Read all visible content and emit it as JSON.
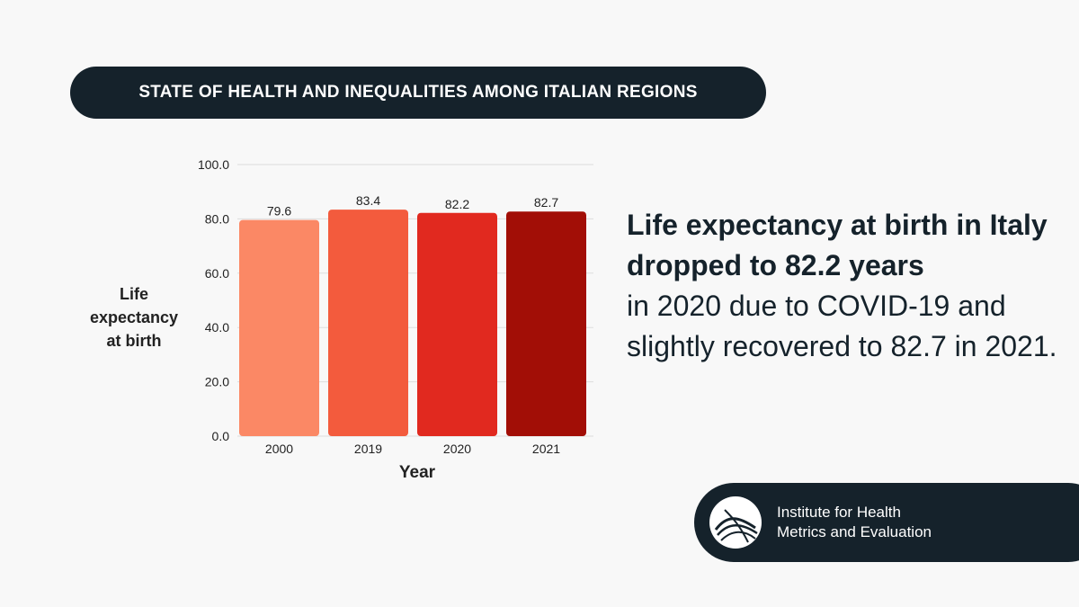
{
  "header": {
    "title": "STATE OF HEALTH AND INEQUALITIES AMONG ITALIAN REGIONS"
  },
  "chart_data": {
    "type": "bar",
    "categories": [
      "2000",
      "2019",
      "2020",
      "2021"
    ],
    "values": [
      79.6,
      83.4,
      82.2,
      82.7
    ],
    "value_labels": [
      "79.6",
      "83.4",
      "82.2",
      "82.7"
    ],
    "colors": [
      "#fb8865",
      "#f35b3d",
      "#e1291f",
      "#a20e06"
    ],
    "ylabel_lines": [
      "Life",
      "expectancy",
      "at birth"
    ],
    "xlabel": "Year",
    "ylim": [
      0,
      100
    ],
    "yticks": [
      0,
      20,
      40,
      60,
      80,
      100
    ],
    "ytick_labels": [
      "0.0",
      "20.0",
      "40.0",
      "60.0",
      "80.0",
      "100.0"
    ],
    "grid": true
  },
  "headline": {
    "bold": "Life expectancy at birth in Italy dropped to 82.2 years",
    "rest": "in 2020 due to COVID-19 and slightly recovered to 82.7 in 2021."
  },
  "logo": {
    "line1": "Institute for Health",
    "line2": "Metrics and Evaluation"
  }
}
